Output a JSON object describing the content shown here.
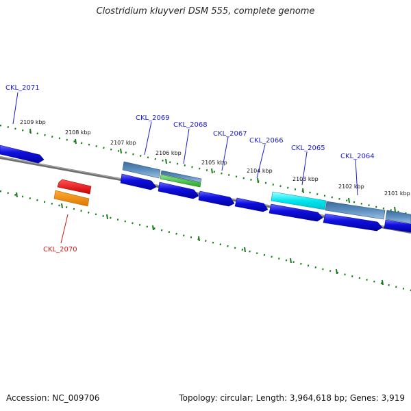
{
  "title": "Clostridium kluyveri DSM 555, complete genome",
  "footer": {
    "accession": "Accession: NC_009706",
    "topology": "Topology: circular; Length: 3,964,618 bp; Genes: 3,919"
  },
  "ticks": [
    "2109 kbp",
    "2108 kbp",
    "2107 kbp",
    "2106 kbp",
    "2105 kbp",
    "2104 kbp",
    "2103 kbp",
    "2102 kbp",
    "2101 kbp"
  ],
  "genes": {
    "g2071": "CKL_2071",
    "g2070": "CKL_2070",
    "g2069": "CKL_2069",
    "g2068": "CKL_2068",
    "g2067": "CKL_2067",
    "g2066": "CKL_2066",
    "g2065": "CKL_2065",
    "g2064": "CKL_2064"
  },
  "colors": {
    "backbone": "#777777",
    "tick": "#1a7a1a",
    "cds": "#1010e0",
    "feature_steel": "#4a7fb0",
    "feature_green": "#33bb33",
    "feature_cyan": "#00e5ee",
    "feature_red": "#ee1111",
    "feature_orange": "#f08800",
    "label_blue": "#1a1acc",
    "label_red": "#dd1111"
  }
}
